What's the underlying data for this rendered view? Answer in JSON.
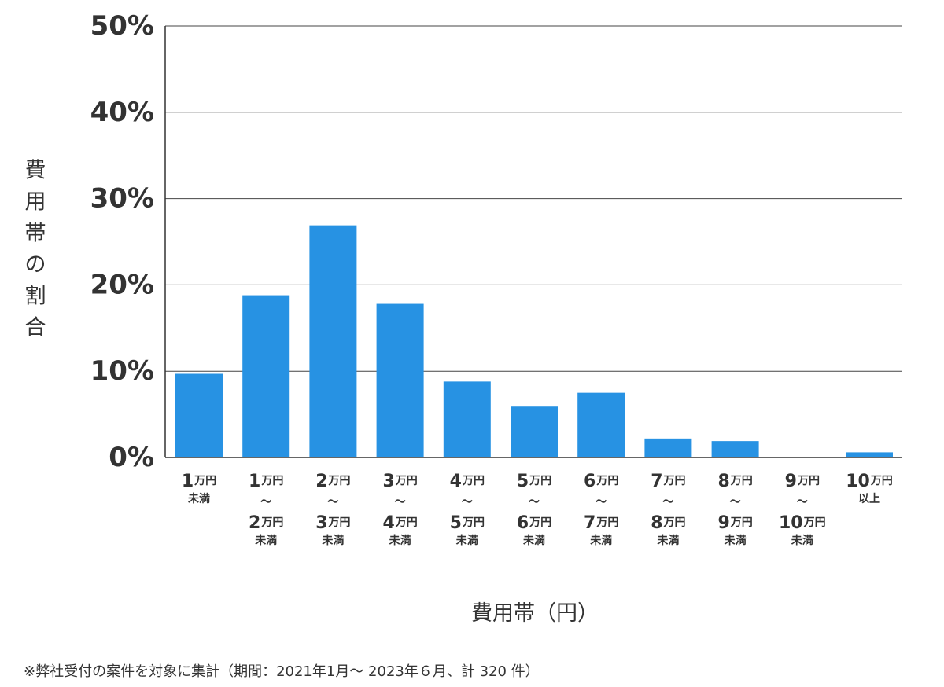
{
  "chart_data": {
    "type": "bar",
    "categories": [
      {
        "lines": [
          {
            "num": "1",
            "unit": "万円"
          },
          {
            "small": "未満"
          }
        ]
      },
      {
        "lines": [
          {
            "num": "1",
            "unit": "万円"
          },
          {
            "small": "〜"
          },
          {
            "num": "2",
            "unit": "万円"
          },
          {
            "small": "未満"
          }
        ]
      },
      {
        "lines": [
          {
            "num": "2",
            "unit": "万円"
          },
          {
            "small": "〜"
          },
          {
            "num": "3",
            "unit": "万円"
          },
          {
            "small": "未満"
          }
        ]
      },
      {
        "lines": [
          {
            "num": "3",
            "unit": "万円"
          },
          {
            "small": "〜"
          },
          {
            "num": "4",
            "unit": "万円"
          },
          {
            "small": "未満"
          }
        ]
      },
      {
        "lines": [
          {
            "num": "4",
            "unit": "万円"
          },
          {
            "small": "〜"
          },
          {
            "num": "5",
            "unit": "万円"
          },
          {
            "small": "未満"
          }
        ]
      },
      {
        "lines": [
          {
            "num": "5",
            "unit": "万円"
          },
          {
            "small": "〜"
          },
          {
            "num": "6",
            "unit": "万円"
          },
          {
            "small": "未満"
          }
        ]
      },
      {
        "lines": [
          {
            "num": "6",
            "unit": "万円"
          },
          {
            "small": "〜"
          },
          {
            "num": "7",
            "unit": "万円"
          },
          {
            "small": "未満"
          }
        ]
      },
      {
        "lines": [
          {
            "num": "7",
            "unit": "万円"
          },
          {
            "small": "〜"
          },
          {
            "num": "8",
            "unit": "万円"
          },
          {
            "small": "未満"
          }
        ]
      },
      {
        "lines": [
          {
            "num": "8",
            "unit": "万円"
          },
          {
            "small": "〜"
          },
          {
            "num": "9",
            "unit": "万円"
          },
          {
            "small": "未満"
          }
        ]
      },
      {
        "lines": [
          {
            "num": "9",
            "unit": "万円"
          },
          {
            "small": "〜"
          },
          {
            "num": "10",
            "unit": "万円"
          },
          {
            "small": "未満"
          }
        ]
      },
      {
        "lines": [
          {
            "num": "10",
            "unit": "万円"
          },
          {
            "small": "以上"
          }
        ]
      }
    ],
    "values": [
      9.7,
      18.8,
      26.9,
      17.8,
      8.8,
      5.9,
      7.5,
      2.2,
      1.9,
      0,
      0.6
    ],
    "yticks": [
      "0%",
      "10%",
      "20%",
      "30%",
      "40%",
      "50%"
    ],
    "ylim": [
      0,
      50
    ],
    "ylabel": "費用帯の割合",
    "xlabel": "費用帯（円）",
    "grid": true,
    "bar_color": "#2792e3"
  },
  "footnote": "※弊社受付の案件を対象に集計（期間：2021年1月～ 2023年６月、計 320 件）"
}
